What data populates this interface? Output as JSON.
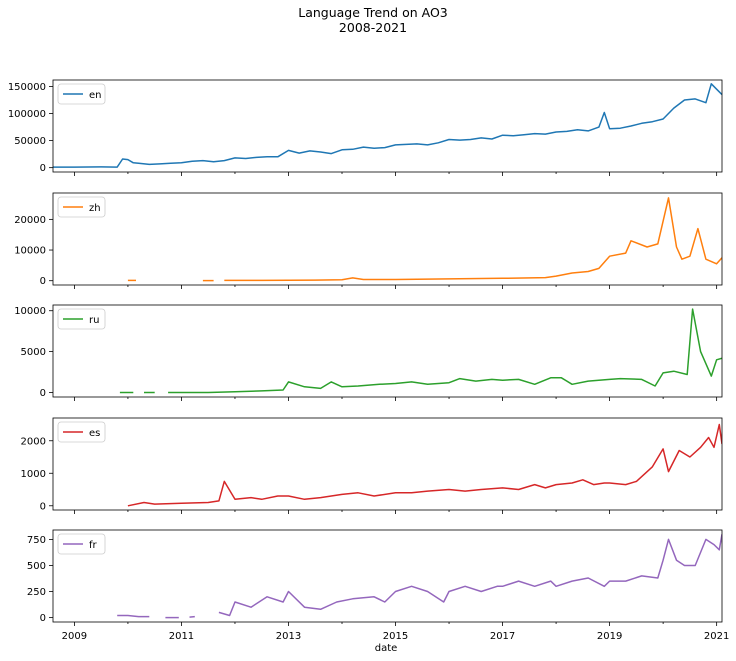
{
  "figure": {
    "title_line1": "Language Trend on AO3",
    "title_line2": "2008-2021",
    "xlabel": "date",
    "x_ticks": [
      2009,
      2011,
      2013,
      2015,
      2017,
      2019,
      2021
    ],
    "x_range": [
      2008.6,
      2021.1
    ]
  },
  "chart_data": {
    "type": "line",
    "title": "Language Trend on AO3 2008-2021",
    "xlabel": "date",
    "x_unit": "year",
    "panels": [
      {
        "name": "en",
        "color": "#1f77b4",
        "ylim": [
          -8000,
          162000
        ],
        "yticks": [
          0,
          50000,
          100000,
          150000
        ],
        "ytick_labels": [
          "0",
          "50000",
          "100000",
          "150000"
        ],
        "x": [
          2008.6,
          2009.0,
          2009.5,
          2009.8,
          2009.9,
          2010.0,
          2010.1,
          2010.2,
          2010.4,
          2010.6,
          2010.8,
          2011.0,
          2011.2,
          2011.4,
          2011.6,
          2011.8,
          2012.0,
          2012.2,
          2012.4,
          2012.6,
          2012.8,
          2013.0,
          2013.2,
          2013.4,
          2013.6,
          2013.8,
          2014.0,
          2014.2,
          2014.4,
          2014.6,
          2014.8,
          2015.0,
          2015.2,
          2015.4,
          2015.6,
          2015.8,
          2016.0,
          2016.2,
          2016.4,
          2016.6,
          2016.8,
          2017.0,
          2017.2,
          2017.4,
          2017.6,
          2017.8,
          2018.0,
          2018.2,
          2018.4,
          2018.6,
          2018.8,
          2018.9,
          2019.0,
          2019.2,
          2019.4,
          2019.6,
          2019.8,
          2020.0,
          2020.2,
          2020.4,
          2020.6,
          2020.8,
          2020.9,
          2021.0,
          2021.1
        ],
        "y": [
          1000,
          1000,
          1500,
          1000,
          16000,
          15000,
          9000,
          8000,
          6000,
          7000,
          8000,
          9000,
          12000,
          13000,
          11000,
          13000,
          18000,
          17000,
          19000,
          20000,
          20000,
          32000,
          27000,
          31000,
          29000,
          26000,
          33000,
          34000,
          38000,
          36000,
          37000,
          42000,
          43000,
          44000,
          42000,
          46000,
          52000,
          51000,
          52000,
          55000,
          53000,
          60000,
          59000,
          61000,
          63000,
          62000,
          66000,
          67000,
          70000,
          68000,
          75000,
          102000,
          72000,
          73000,
          77000,
          82000,
          85000,
          90000,
          110000,
          125000,
          127000,
          120000,
          155000,
          145000,
          135000
        ]
      },
      {
        "name": "zh",
        "color": "#ff7f0e",
        "ylim": [
          -1400,
          28600
        ],
        "yticks": [
          0,
          10000,
          20000
        ],
        "ytick_labels": [
          "0",
          "10000",
          "20000"
        ],
        "segments": [
          {
            "x": [
              2010.0,
              2010.15
            ],
            "y": [
              100,
              100
            ]
          },
          {
            "x": [
              2011.4,
              2011.6
            ],
            "y": [
              50,
              50
            ]
          },
          {
            "x": [
              2011.8,
              2012.5,
              2013.5,
              2014.0,
              2014.2,
              2014.4,
              2015.0,
              2016.0,
              2017.0,
              2017.8,
              2018.0,
              2018.3,
              2018.6,
              2018.8,
              2019.0,
              2019.3,
              2019.4,
              2019.7,
              2019.9,
              2020.1,
              2020.25,
              2020.35,
              2020.5,
              2020.65,
              2020.8,
              2021.0,
              2021.1
            ],
            "y": [
              100,
              100,
              200,
              300,
              900,
              400,
              400,
              600,
              800,
              1000,
              1500,
              2500,
              3000,
              4000,
              8000,
              9000,
              13000,
              11000,
              12000,
              27000,
              11000,
              7000,
              8000,
              17000,
              7000,
              5500,
              7500
            ]
          }
        ]
      },
      {
        "name": "ru",
        "color": "#2ca02c",
        "ylim": [
          -550,
          10700
        ],
        "yticks": [
          0,
          5000,
          10000
        ],
        "ytick_labels": [
          "0",
          "5000",
          "10000"
        ],
        "segments": [
          {
            "x": [
              2009.85,
              2010.1
            ],
            "y": [
              0,
              0
            ]
          },
          {
            "x": [
              2010.3,
              2010.5
            ],
            "y": [
              0,
              0
            ]
          },
          {
            "x": [
              2010.75,
              2011.5,
              2012.0,
              2012.5,
              2012.9,
              2013.0,
              2013.3,
              2013.6,
              2013.8,
              2014.0,
              2014.3,
              2014.7,
              2015.0,
              2015.3,
              2015.6,
              2016.0,
              2016.2,
              2016.5,
              2016.8,
              2017.0,
              2017.3,
              2017.6,
              2017.9,
              2018.1,
              2018.3,
              2018.6,
              2019.0,
              2019.2,
              2019.6,
              2019.85,
              2020.0,
              2020.2,
              2020.45,
              2020.55,
              2020.7,
              2020.9,
              2021.0,
              2021.1
            ],
            "y": [
              0,
              0,
              100,
              200,
              300,
              1300,
              700,
              500,
              1300,
              700,
              800,
              1000,
              1100,
              1300,
              1000,
              1200,
              1700,
              1400,
              1600,
              1500,
              1600,
              1000,
              1800,
              1800,
              1000,
              1400,
              1600,
              1700,
              1600,
              800,
              2400,
              2600,
              2200,
              10200,
              5000,
              2000,
              4000,
              4200
            ]
          }
        ]
      },
      {
        "name": "es",
        "color": "#d62728",
        "ylim": [
          -130,
          2700
        ],
        "yticks": [
          0,
          1000,
          2000
        ],
        "ytick_labels": [
          "0",
          "1000",
          "2000"
        ],
        "segments": [
          {
            "x": [
              2010.0,
              2010.3,
              2010.5,
              2011.0,
              2011.5,
              2011.7,
              2011.8,
              2012.0,
              2012.3,
              2012.5,
              2012.8,
              2013.0,
              2013.3,
              2013.6,
              2014.0,
              2014.3,
              2014.6,
              2015.0,
              2015.3,
              2015.6,
              2016.0,
              2016.3,
              2016.6,
              2017.0,
              2017.3,
              2017.6,
              2017.8,
              2018.0,
              2018.3,
              2018.5,
              2018.7,
              2018.9,
              2019.0,
              2019.3,
              2019.5,
              2019.8,
              2020.0,
              2020.1,
              2020.3,
              2020.5,
              2020.7,
              2020.85,
              2020.95,
              2021.05,
              2021.1
            ],
            "y": [
              0,
              100,
              50,
              80,
              100,
              150,
              750,
              200,
              250,
              200,
              300,
              300,
              200,
              250,
              350,
              400,
              300,
              400,
              400,
              450,
              500,
              450,
              500,
              550,
              500,
              650,
              550,
              650,
              700,
              800,
              650,
              700,
              700,
              650,
              750,
              1200,
              1750,
              1050,
              1700,
              1500,
              1800,
              2100,
              1800,
              2500,
              1900
            ]
          }
        ]
      },
      {
        "name": "fr",
        "color": "#9467bd",
        "ylim": [
          -42,
          840
        ],
        "yticks": [
          0,
          250,
          500,
          750
        ],
        "ytick_labels": [
          "0",
          "250",
          "500",
          "750"
        ],
        "segments": [
          {
            "x": [
              2009.8,
              2010.0,
              2010.2,
              2010.4
            ],
            "y": [
              20,
              20,
              10,
              10
            ]
          },
          {
            "x": [
              2010.7,
              2010.95
            ],
            "y": [
              0,
              0
            ]
          },
          {
            "x": [
              2011.15,
              2011.25
            ],
            "y": [
              5,
              10
            ]
          },
          {
            "x": [
              2011.7,
              2011.9,
              2012.0,
              2012.3,
              2012.6,
              2012.9,
              2013.0,
              2013.3,
              2013.6,
              2013.9,
              2014.2,
              2014.6,
              2014.8,
              2015.0,
              2015.3,
              2015.6,
              2015.9,
              2016.0,
              2016.3,
              2016.6,
              2016.9,
              2017.0,
              2017.3,
              2017.6,
              2017.9,
              2018.0,
              2018.3,
              2018.6,
              2018.9,
              2019.0,
              2019.3,
              2019.6,
              2019.9,
              2020.0,
              2020.1,
              2020.25,
              2020.4,
              2020.6,
              2020.8,
              2020.95,
              2021.05,
              2021.1
            ],
            "y": [
              50,
              20,
              150,
              100,
              200,
              150,
              250,
              100,
              80,
              150,
              180,
              200,
              150,
              250,
              300,
              250,
              150,
              250,
              300,
              250,
              300,
              300,
              350,
              300,
              350,
              300,
              350,
              380,
              300,
              350,
              350,
              400,
              380,
              550,
              750,
              550,
              500,
              500,
              750,
              700,
              650,
              800
            ]
          }
        ]
      }
    ]
  }
}
